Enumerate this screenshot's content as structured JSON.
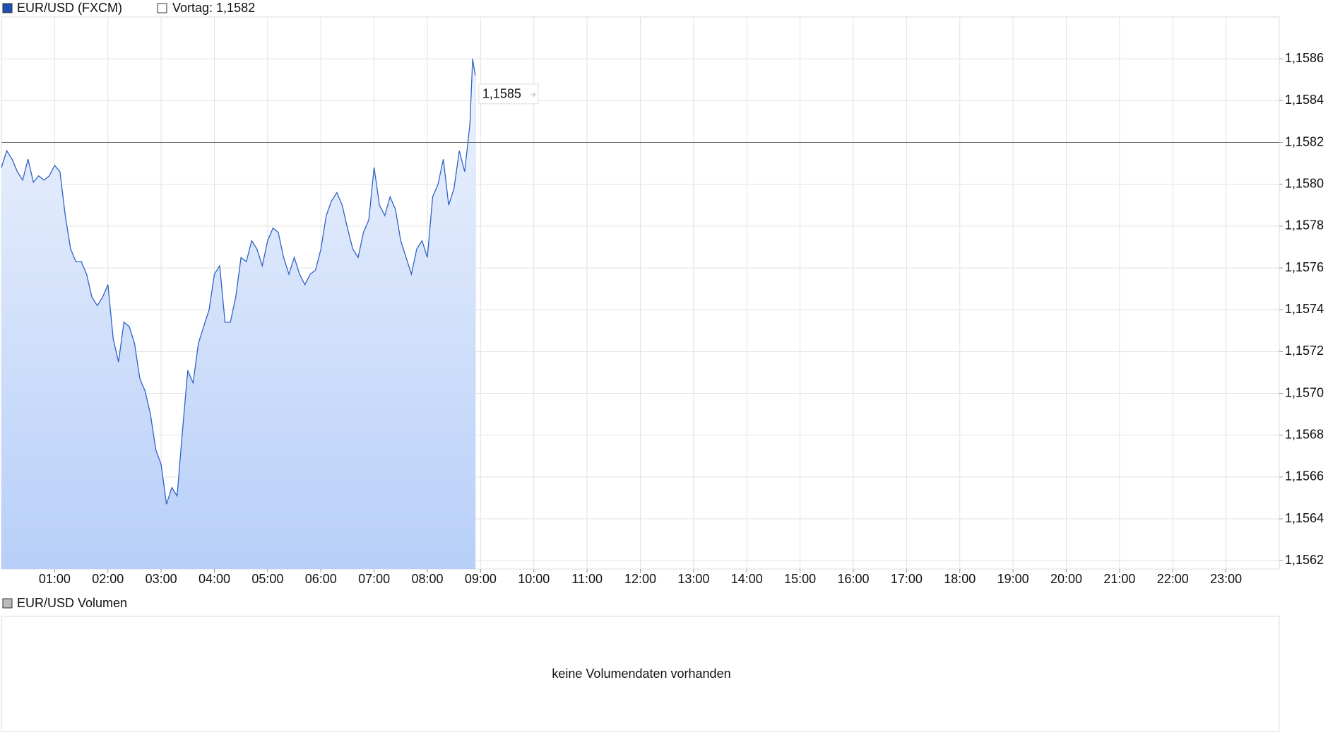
{
  "chart_data": {
    "type": "line",
    "series": [
      {
        "name": "EUR/USD (FXCM)",
        "color": "#2f62c6",
        "x": [
          0.0,
          0.1,
          0.2,
          0.3,
          0.4,
          0.5,
          0.6,
          0.7,
          0.8,
          0.9,
          1.0,
          1.1,
          1.2,
          1.3,
          1.4,
          1.5,
          1.6,
          1.7,
          1.8,
          1.9,
          2.0,
          2.1,
          2.2,
          2.3,
          2.4,
          2.5,
          2.6,
          2.7,
          2.8,
          2.9,
          3.0,
          3.1,
          3.2,
          3.3,
          3.4,
          3.5,
          3.6,
          3.7,
          3.8,
          3.9,
          4.0,
          4.1,
          4.2,
          4.3,
          4.4,
          4.5,
          4.6,
          4.7,
          4.8,
          4.9,
          5.0,
          5.1,
          5.2,
          5.3,
          5.4,
          5.5,
          5.6,
          5.7,
          5.8,
          5.9,
          6.0,
          6.1,
          6.2,
          6.3,
          6.4,
          6.5,
          6.6,
          6.7,
          6.8,
          6.9,
          7.0,
          7.1,
          7.2,
          7.3,
          7.4,
          7.5,
          7.6,
          7.7,
          7.8,
          7.9,
          8.0,
          8.1,
          8.2,
          8.3,
          8.4,
          8.5,
          8.6,
          8.7,
          8.8,
          8.85,
          8.9
        ],
        "values": [
          1.15808,
          1.15816,
          1.15812,
          1.15806,
          1.15802,
          1.15812,
          1.15801,
          1.15804,
          1.15802,
          1.15804,
          1.15809,
          1.15806,
          1.15785,
          1.15769,
          1.15763,
          1.15763,
          1.15757,
          1.15746,
          1.15742,
          1.15746,
          1.15752,
          1.15726,
          1.15715,
          1.15734,
          1.15732,
          1.15724,
          1.15707,
          1.15701,
          1.1569,
          1.15673,
          1.15666,
          1.15647,
          1.15655,
          1.15651,
          1.15682,
          1.15711,
          1.15705,
          1.15724,
          1.15732,
          1.1574,
          1.15757,
          1.15761,
          1.15734,
          1.15734,
          1.15746,
          1.15765,
          1.15763,
          1.15773,
          1.15769,
          1.15761,
          1.15773,
          1.15779,
          1.15777,
          1.15765,
          1.15757,
          1.15765,
          1.15757,
          1.15752,
          1.15757,
          1.15759,
          1.15769,
          1.15785,
          1.15792,
          1.15796,
          1.1579,
          1.15779,
          1.15769,
          1.15765,
          1.15777,
          1.15783,
          1.15808,
          1.1579,
          1.15785,
          1.15794,
          1.15788,
          1.15773,
          1.15765,
          1.15757,
          1.15769,
          1.15773,
          1.15765,
          1.15794,
          1.158,
          1.15812,
          1.1579,
          1.15798,
          1.15816,
          1.15806,
          1.15829,
          1.1586,
          1.15852
        ]
      }
    ],
    "reference": {
      "label": "Vortag: 1,1582",
      "value": 1.1582
    },
    "annotation": {
      "text": "1,1585",
      "x": 8.9,
      "y": 1.15852
    },
    "xlim": [
      0,
      24
    ],
    "xticks": [
      {
        "value": 1,
        "label": "01:00"
      },
      {
        "value": 2,
        "label": "02:00"
      },
      {
        "value": 3,
        "label": "03:00"
      },
      {
        "value": 4,
        "label": "04:00"
      },
      {
        "value": 5,
        "label": "05:00"
      },
      {
        "value": 6,
        "label": "06:00"
      },
      {
        "value": 7,
        "label": "07:00"
      },
      {
        "value": 8,
        "label": "08:00"
      },
      {
        "value": 9,
        "label": "09:00"
      },
      {
        "value": 10,
        "label": "10:00"
      },
      {
        "value": 11,
        "label": "11:00"
      },
      {
        "value": 12,
        "label": "12:00"
      },
      {
        "value": 13,
        "label": "13:00"
      },
      {
        "value": 14,
        "label": "14:00"
      },
      {
        "value": 15,
        "label": "15:00"
      },
      {
        "value": 16,
        "label": "16:00"
      },
      {
        "value": 17,
        "label": "17:00"
      },
      {
        "value": 18,
        "label": "18:00"
      },
      {
        "value": 19,
        "label": "19:00"
      },
      {
        "value": 20,
        "label": "20:00"
      },
      {
        "value": 21,
        "label": "21:00"
      },
      {
        "value": 22,
        "label": "22:00"
      },
      {
        "value": 23,
        "label": "23:00"
      }
    ],
    "ylim": [
      1.15616,
      1.1588
    ],
    "yticks": [
      {
        "value": 1.1562,
        "label": "1,1562"
      },
      {
        "value": 1.1564,
        "label": "1,1564"
      },
      {
        "value": 1.1566,
        "label": "1,1566"
      },
      {
        "value": 1.1568,
        "label": "1,1568"
      },
      {
        "value": 1.157,
        "label": "1,1570"
      },
      {
        "value": 1.1572,
        "label": "1,1572"
      },
      {
        "value": 1.1574,
        "label": "1,1574"
      },
      {
        "value": 1.1576,
        "label": "1,1576"
      },
      {
        "value": 1.1578,
        "label": "1,1578"
      },
      {
        "value": 1.158,
        "label": "1,1580"
      },
      {
        "value": 1.1582,
        "label": "1,1582"
      },
      {
        "value": 1.1584,
        "label": "1,1584"
      },
      {
        "value": 1.1586,
        "label": "1,1586"
      }
    ],
    "grid": true,
    "volume_panel": {
      "legend": "EUR/USD Volumen",
      "message": "keine Volumendaten vorhanden"
    }
  }
}
